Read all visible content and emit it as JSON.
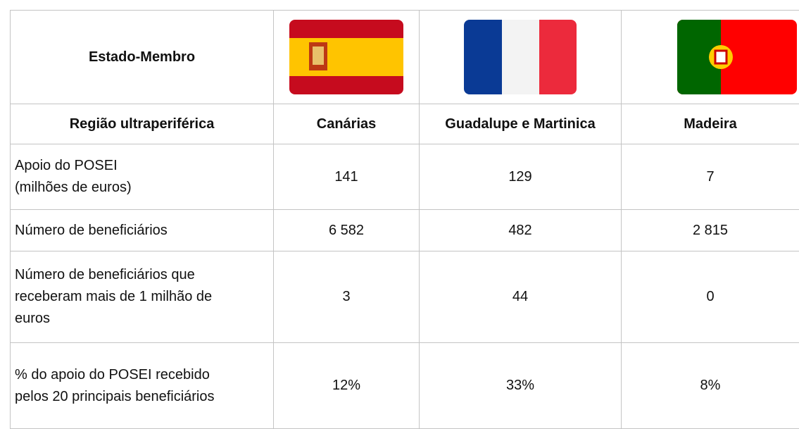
{
  "header": {
    "member_state_label": "Estado-Membro"
  },
  "table": {
    "columns": [
      "Região ultraperiférica",
      "Canárias",
      "Guadalupe e Martinica",
      "Madeira"
    ],
    "rows": [
      [
        "Apoio do POSEI\n(milhões de euros)",
        "141",
        "129",
        "7"
      ],
      [
        "Número de beneficiários",
        "6 582",
        "482",
        "2 815"
      ],
      [
        "Número de beneficiários que receberam mais de 1 milhão de euros",
        "3",
        "44",
        "0"
      ],
      [
        "% do apoio do POSEI recebido pelos 20 principais beneficiários",
        "12%",
        "33%",
        "8%"
      ]
    ]
  }
}
